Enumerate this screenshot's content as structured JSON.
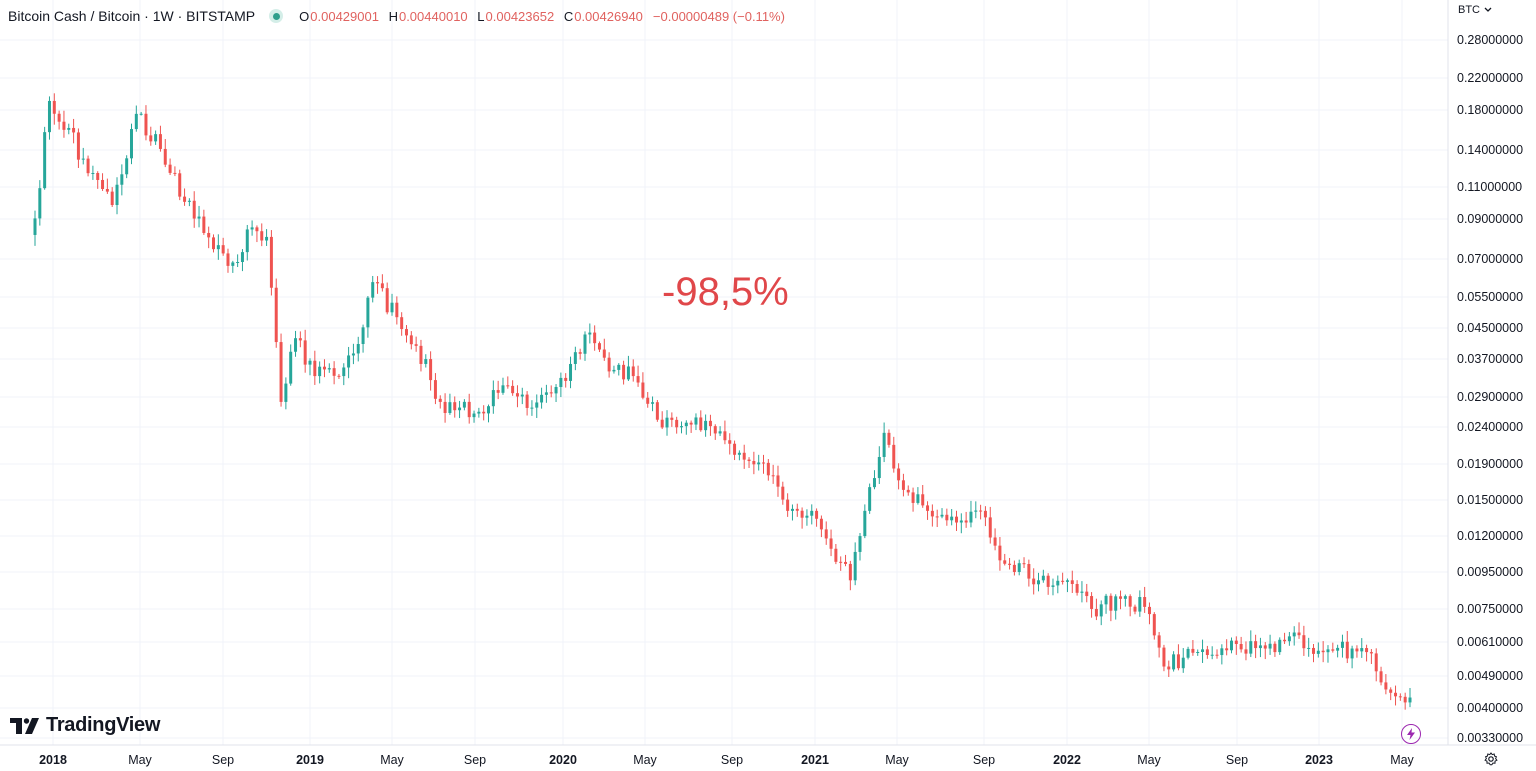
{
  "legend": {
    "title": "Bitcoin Cash / Bitcoin · 1W · BITSTAMP",
    "o_label": "O",
    "o_value": "0.00429001",
    "h_label": "H",
    "h_value": "0.00440010",
    "l_label": "L",
    "l_value": "0.00423652",
    "c_label": "C",
    "c_value": "0.00426940",
    "change": "−0.00000489 (−0.11%)"
  },
  "currency_label": "BTC",
  "currency_icon": "chevron-down-icon",
  "brand": "TradingView",
  "annotation": "-98,5%",
  "colors": {
    "up": "#26a69a",
    "down": "#ef5350",
    "annotation": "#e0474a",
    "grid": "#f0f3fa"
  },
  "chart_data": {
    "type": "candlestick",
    "scale": "log",
    "y_range": [
      0.0031,
      0.3
    ],
    "y_ticks": [
      "0.28000000",
      "0.22000000",
      "0.18000000",
      "0.14000000",
      "0.11000000",
      "0.09000000",
      "0.07000000",
      "0.05500000",
      "0.04500000",
      "0.03700000",
      "0.02900000",
      "0.02400000",
      "0.01900000",
      "0.01500000",
      "0.01200000",
      "0.00950000",
      "0.00750000",
      "0.00610000",
      "0.00490000",
      "0.00400000",
      "0.00330000"
    ],
    "x_ticks": [
      {
        "label": "2018",
        "bold": true
      },
      {
        "label": "May",
        "bold": false
      },
      {
        "label": "Sep",
        "bold": false
      },
      {
        "label": "2019",
        "bold": true
      },
      {
        "label": "May",
        "bold": false
      },
      {
        "label": "Sep",
        "bold": false
      },
      {
        "label": "2020",
        "bold": true
      },
      {
        "label": "May",
        "bold": false
      },
      {
        "label": "Sep",
        "bold": false
      },
      {
        "label": "2021",
        "bold": true
      },
      {
        "label": "May",
        "bold": false
      },
      {
        "label": "Sep",
        "bold": false
      },
      {
        "label": "2022",
        "bold": true
      },
      {
        "label": "May",
        "bold": false
      },
      {
        "label": "Sep",
        "bold": false
      },
      {
        "label": "2023",
        "bold": true
      },
      {
        "label": "May",
        "bold": false
      }
    ],
    "anchors": [
      [
        "2017-11-27",
        0.09
      ],
      [
        "2017-12-18",
        0.19
      ],
      [
        "2018-01-15",
        0.16
      ],
      [
        "2018-02-12",
        0.12
      ],
      [
        "2018-03-19",
        0.098
      ],
      [
        "2018-04-23",
        0.175
      ],
      [
        "2018-05-28",
        0.14
      ],
      [
        "2018-07-02",
        0.1
      ],
      [
        "2018-08-13",
        0.074
      ],
      [
        "2018-09-10",
        0.068
      ],
      [
        "2018-10-08",
        0.085
      ],
      [
        "2018-10-29",
        0.08
      ],
      [
        "2018-11-19",
        0.028
      ],
      [
        "2018-12-10",
        0.042
      ],
      [
        "2019-01-07",
        0.033
      ],
      [
        "2019-02-11",
        0.033
      ],
      [
        "2019-03-18",
        0.045
      ],
      [
        "2019-03-31",
        0.06
      ],
      [
        "2019-05-06",
        0.048
      ],
      [
        "2019-06-03",
        0.04
      ],
      [
        "2019-07-08",
        0.028
      ],
      [
        "2019-08-26",
        0.026
      ],
      [
        "2019-10-14",
        0.031
      ],
      [
        "2019-11-18",
        0.027
      ],
      [
        "2020-01-06",
        0.032
      ],
      [
        "2020-02-03",
        0.043
      ],
      [
        "2020-03-09",
        0.034
      ],
      [
        "2020-04-13",
        0.033
      ],
      [
        "2020-05-18",
        0.025
      ],
      [
        "2020-06-22",
        0.024
      ],
      [
        "2020-08-03",
        0.024
      ],
      [
        "2020-09-07",
        0.02
      ],
      [
        "2020-10-19",
        0.019
      ],
      [
        "2020-11-23",
        0.014
      ],
      [
        "2020-12-28",
        0.014
      ],
      [
        "2021-01-25",
        0.011
      ],
      [
        "2021-02-22",
        0.009
      ],
      [
        "2021-03-15",
        0.014
      ],
      [
        "2021-04-12",
        0.023
      ],
      [
        "2021-05-10",
        0.016
      ],
      [
        "2021-06-14",
        0.014
      ],
      [
        "2021-07-26",
        0.013
      ],
      [
        "2021-08-30",
        0.014
      ],
      [
        "2021-10-04",
        0.01
      ],
      [
        "2021-11-22",
        0.009
      ],
      [
        "2022-01-03",
        0.009
      ],
      [
        "2022-02-07",
        0.0075
      ],
      [
        "2022-03-21",
        0.008
      ],
      [
        "2022-04-25",
        0.0076
      ],
      [
        "2022-05-23",
        0.0052
      ],
      [
        "2022-06-20",
        0.0055
      ],
      [
        "2022-07-18",
        0.0058
      ],
      [
        "2022-09-12",
        0.0058
      ],
      [
        "2022-10-31",
        0.0057
      ],
      [
        "2022-11-21",
        0.0063
      ],
      [
        "2023-01-16",
        0.0058
      ],
      [
        "2023-03-13",
        0.0057
      ],
      [
        "2023-04-17",
        0.0044
      ],
      [
        "2023-05-15",
        0.00427
      ]
    ],
    "last_close": 0.0042694
  }
}
